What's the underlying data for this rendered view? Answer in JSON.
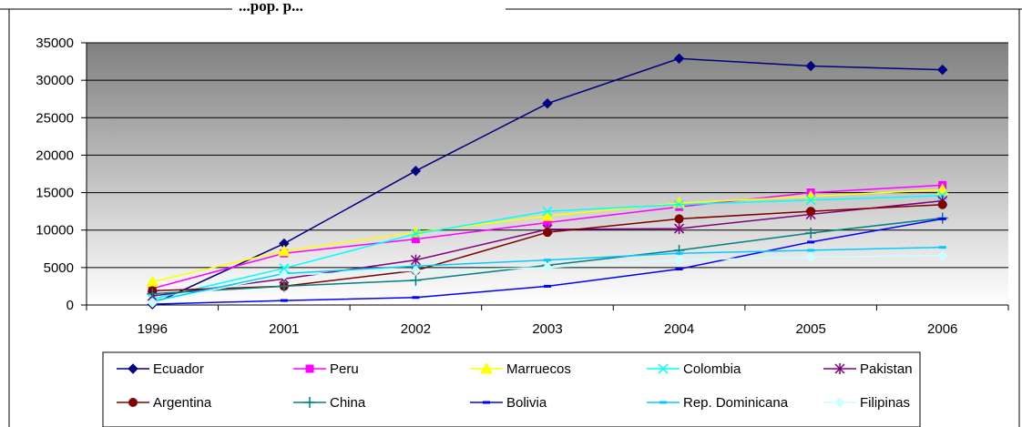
{
  "chart_data": {
    "type": "line",
    "title": "...pop. p...",
    "xlabel": "",
    "ylabel": "",
    "categories": [
      "1996",
      "2001",
      "2002",
      "2003",
      "2004",
      "2005",
      "2006"
    ],
    "ylim": [
      0,
      35000
    ],
    "yticks": [
      "0",
      "5000",
      "10000",
      "15000",
      "20000",
      "25000",
      "30000",
      "35000"
    ],
    "grid": true,
    "legend_position": "bottom",
    "series": [
      {
        "name": "Ecuador",
        "color": "#000080",
        "marker": "diamond",
        "values": [
          100,
          8200,
          17900,
          26900,
          32900,
          31900,
          31400
        ]
      },
      {
        "name": "Peru",
        "color": "#ff00ff",
        "marker": "square",
        "values": [
          2200,
          6900,
          8800,
          11000,
          13100,
          15000,
          16000
        ]
      },
      {
        "name": "Marruecos",
        "color": "#ffff00",
        "marker": "triangle",
        "values": [
          3100,
          7200,
          9700,
          11900,
          13600,
          14500,
          15400
        ]
      },
      {
        "name": "Colombia",
        "color": "#00ffff",
        "marker": "x",
        "values": [
          800,
          4900,
          9500,
          12500,
          13400,
          14000,
          14600
        ]
      },
      {
        "name": "Pakistan",
        "color": "#800080",
        "marker": "asterisk",
        "values": [
          1200,
          3500,
          6000,
          10100,
          10200,
          12100,
          13900
        ]
      },
      {
        "name": "Argentina",
        "color": "#800000",
        "marker": "circle",
        "values": [
          1900,
          2500,
          4600,
          9700,
          11500,
          12500,
          13400
        ]
      },
      {
        "name": "China",
        "color": "#008080",
        "marker": "plus",
        "values": [
          1500,
          2500,
          3300,
          5300,
          7300,
          9600,
          11600
        ]
      },
      {
        "name": "Bolivia",
        "color": "#0000ff",
        "marker": "dash",
        "values": [
          100,
          600,
          1000,
          2500,
          4800,
          8400,
          11500
        ]
      },
      {
        "name": "Rep. Dominicana",
        "color": "#00ccff",
        "marker": "dash",
        "values": [
          500,
          4200,
          5200,
          6000,
          6900,
          7300,
          7700
        ]
      },
      {
        "name": "Filipinas",
        "color": "#ccffff",
        "marker": "diamond",
        "values": [
          300,
          4000,
          4600,
          5000,
          6000,
          6400,
          6600
        ]
      }
    ]
  }
}
